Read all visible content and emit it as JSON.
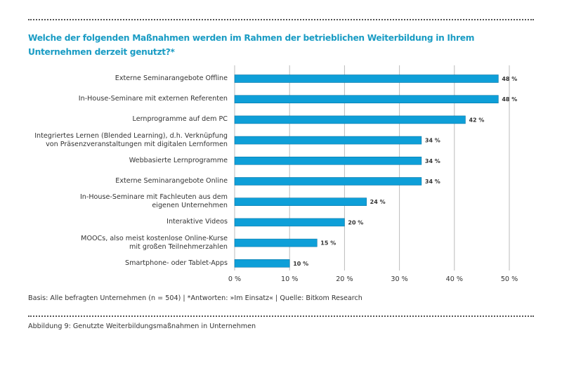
{
  "title": "Welche der folgenden Maßnahmen werden im Rahmen der betrieblichen Weiterbildung in Ihrem Unternehmen derzeit genutzt?*",
  "chart_data": {
    "type": "bar",
    "orientation": "horizontal",
    "categories": [
      "Externe Seminarangebote Offline",
      "In-House-Seminare mit externen Referenten",
      "Lernprogramme auf dem PC",
      "Integriertes Lernen (Blended Learning), d.h. Verknüpfung\nvon Präsenzveranstaltungen mit digitalen Lernformen",
      "Webbasierte Lernprogramme",
      "Externe Seminarangebote Online",
      "In-House-Seminare mit Fachleuten aus dem\neigenen Unternehmen",
      "Interaktive Videos",
      "MOOCs, also meist kostenlose Online-Kurse\nmit großen Teilnehmerzahlen",
      "Smartphone- oder Tablet-Apps"
    ],
    "values": [
      48,
      48,
      42,
      34,
      34,
      34,
      24,
      20,
      15,
      10
    ],
    "data_labels": [
      "48 %",
      "48 %",
      "42 %",
      "34 %",
      "34 %",
      "34 %",
      "24 %",
      "20 %",
      "15 %",
      "10 %"
    ],
    "xlim": [
      0,
      50
    ],
    "xticks": [
      0,
      10,
      20,
      30,
      40,
      50
    ],
    "xtick_labels": [
      "0 %",
      "10 %",
      "20 %",
      "30 %",
      "40 %",
      "50 %"
    ],
    "grid": "vertical",
    "bar_color": "#0e9fd8"
  },
  "basis": "Basis: Alle befragten Unternehmen (n = 504) | *Antworten: »Im Einsatz« | Quelle: Bitkom Research",
  "caption": "Abbildung 9: Genutzte Weiterbildungsmaßnahmen in Unternehmen"
}
